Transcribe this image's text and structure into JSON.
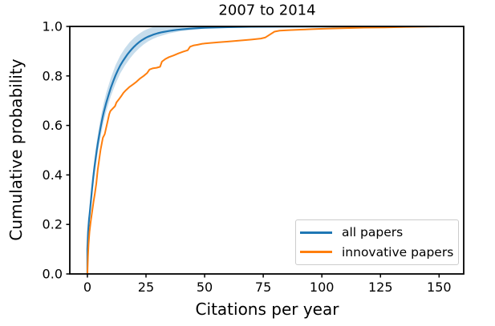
{
  "chart_data": {
    "type": "line",
    "subtype": "ecdf",
    "title": "2007 to 2014",
    "xlabel": "Citations per year",
    "ylabel": "Cumulative probability",
    "xlim": [
      -7.5,
      160.5
    ],
    "ylim": [
      0,
      1
    ],
    "grid": false,
    "x_tick_values": [
      0,
      25,
      50,
      75,
      100,
      125,
      150
    ],
    "x_tick_labels": [
      "0",
      "25",
      "50",
      "75",
      "100",
      "125",
      "150"
    ],
    "y_tick_values": [
      0.0,
      0.2,
      0.4,
      0.6,
      0.8,
      1.0
    ],
    "y_tick_labels": [
      "0.0",
      "0.2",
      "0.4",
      "0.6",
      "0.8",
      "1.0"
    ],
    "legend": {
      "position": "lower right",
      "entries": [
        {
          "label": "all papers",
          "color": "#1f77b4"
        },
        {
          "label": "innovative papers",
          "color": "#ff7f0e"
        }
      ]
    },
    "series": [
      {
        "name": "all papers",
        "color": "#1f77b4",
        "width": 2.2,
        "points": [
          [
            0,
            0
          ],
          [
            0,
            0.1
          ],
          [
            0.3,
            0.17
          ],
          [
            0.7,
            0.22
          ],
          [
            1,
            0.245
          ],
          [
            1.5,
            0.295
          ],
          [
            2,
            0.345
          ],
          [
            2.5,
            0.39
          ],
          [
            3,
            0.43
          ],
          [
            3.5,
            0.465
          ],
          [
            4,
            0.5
          ],
          [
            4.5,
            0.53
          ],
          [
            5,
            0.558
          ],
          [
            5.5,
            0.585
          ],
          [
            6,
            0.61
          ],
          [
            6.5,
            0.633
          ],
          [
            7,
            0.654
          ],
          [
            7.5,
            0.672
          ],
          [
            8,
            0.69
          ],
          [
            9,
            0.722
          ],
          [
            10,
            0.752
          ],
          [
            11,
            0.778
          ],
          [
            12,
            0.802
          ],
          [
            13,
            0.823
          ],
          [
            14,
            0.842
          ],
          [
            15,
            0.858
          ],
          [
            16,
            0.872
          ],
          [
            17,
            0.886
          ],
          [
            18,
            0.898
          ],
          [
            19,
            0.909
          ],
          [
            20,
            0.919
          ],
          [
            21,
            0.928
          ],
          [
            22,
            0.936
          ],
          [
            23,
            0.943
          ],
          [
            24,
            0.949
          ],
          [
            25,
            0.9545
          ],
          [
            26,
            0.959
          ],
          [
            28,
            0.9665
          ],
          [
            30,
            0.9725
          ],
          [
            32,
            0.977
          ],
          [
            34,
            0.9805
          ],
          [
            36,
            0.9835
          ],
          [
            38,
            0.986
          ],
          [
            40,
            0.988
          ],
          [
            43,
            0.9905
          ],
          [
            46,
            0.9925
          ],
          [
            50,
            0.9945
          ],
          [
            55,
            0.996
          ],
          [
            60,
            0.9972
          ],
          [
            70,
            0.9985
          ],
          [
            80,
            0.9992
          ],
          [
            100,
            0.9997
          ],
          [
            120,
            0.9999
          ],
          [
            150,
            1.0
          ]
        ]
      },
      {
        "name": "innovative papers",
        "color": "#ff7f0e",
        "width": 2.0,
        "points": [
          [
            0,
            0
          ],
          [
            0.25,
            0.07
          ],
          [
            0.5,
            0.12
          ],
          [
            0.9,
            0.17
          ],
          [
            1.4,
            0.21
          ],
          [
            2,
            0.25
          ],
          [
            2.6,
            0.29
          ],
          [
            3.2,
            0.325
          ],
          [
            3.8,
            0.365
          ],
          [
            4.4,
            0.42
          ],
          [
            5,
            0.46
          ],
          [
            5.6,
            0.5
          ],
          [
            6.2,
            0.53
          ],
          [
            6.6,
            0.55
          ],
          [
            7.4,
            0.565
          ],
          [
            8,
            0.59
          ],
          [
            8.6,
            0.615
          ],
          [
            9.3,
            0.645
          ],
          [
            9.8,
            0.658
          ],
          [
            10.8,
            0.668
          ],
          [
            11.8,
            0.678
          ],
          [
            12.4,
            0.693
          ],
          [
            13.4,
            0.705
          ],
          [
            14.4,
            0.718
          ],
          [
            15.4,
            0.732
          ],
          [
            16.4,
            0.742
          ],
          [
            18,
            0.756
          ],
          [
            19.5,
            0.766
          ],
          [
            21,
            0.777
          ],
          [
            22.5,
            0.79
          ],
          [
            24,
            0.8
          ],
          [
            25.5,
            0.812
          ],
          [
            26.5,
            0.826
          ],
          [
            28,
            0.831
          ],
          [
            29.5,
            0.833
          ],
          [
            31,
            0.837
          ],
          [
            31.8,
            0.858
          ],
          [
            33.2,
            0.868
          ],
          [
            34.8,
            0.876
          ],
          [
            36.8,
            0.883
          ],
          [
            38.8,
            0.891
          ],
          [
            40.8,
            0.898
          ],
          [
            42.8,
            0.904
          ],
          [
            43.8,
            0.918
          ],
          [
            45.2,
            0.923
          ],
          [
            47,
            0.926
          ],
          [
            49,
            0.93
          ],
          [
            52,
            0.933
          ],
          [
            56,
            0.936
          ],
          [
            60,
            0.939
          ],
          [
            65,
            0.943
          ],
          [
            70,
            0.947
          ],
          [
            74,
            0.951
          ],
          [
            75.8,
            0.955
          ],
          [
            79.8,
            0.979
          ],
          [
            82,
            0.983
          ],
          [
            86,
            0.985
          ],
          [
            91,
            0.987
          ],
          [
            96,
            0.989
          ],
          [
            102,
            0.991
          ],
          [
            110,
            0.993
          ],
          [
            118,
            0.995
          ],
          [
            127,
            0.996
          ],
          [
            136,
            0.998
          ],
          [
            143,
            0.999
          ],
          [
            147,
            1.0
          ],
          [
            150,
            1.0
          ]
        ]
      }
    ],
    "band": {
      "series": "all papers",
      "color": "#1f77b4",
      "opacity": 0.25,
      "x": [
        0,
        0.5,
        1,
        2,
        3,
        4,
        5,
        6,
        7,
        8,
        10,
        12,
        14,
        16,
        18,
        20,
        22,
        24,
        26,
        28,
        30,
        35,
        40,
        50,
        58
      ],
      "upper": [
        0.115,
        0.21,
        0.275,
        0.38,
        0.465,
        0.535,
        0.595,
        0.648,
        0.692,
        0.73,
        0.792,
        0.843,
        0.882,
        0.912,
        0.936,
        0.955,
        0.97,
        0.982,
        0.991,
        0.997,
        1.0,
        1.0,
        1.0,
        1.0,
        0.998
      ],
      "lower": [
        0.085,
        0.16,
        0.215,
        0.31,
        0.395,
        0.465,
        0.522,
        0.573,
        0.618,
        0.655,
        0.718,
        0.768,
        0.81,
        0.842,
        0.869,
        0.892,
        0.911,
        0.927,
        0.94,
        0.95,
        0.958,
        0.972,
        0.981,
        0.991,
        0.995
      ]
    }
  }
}
